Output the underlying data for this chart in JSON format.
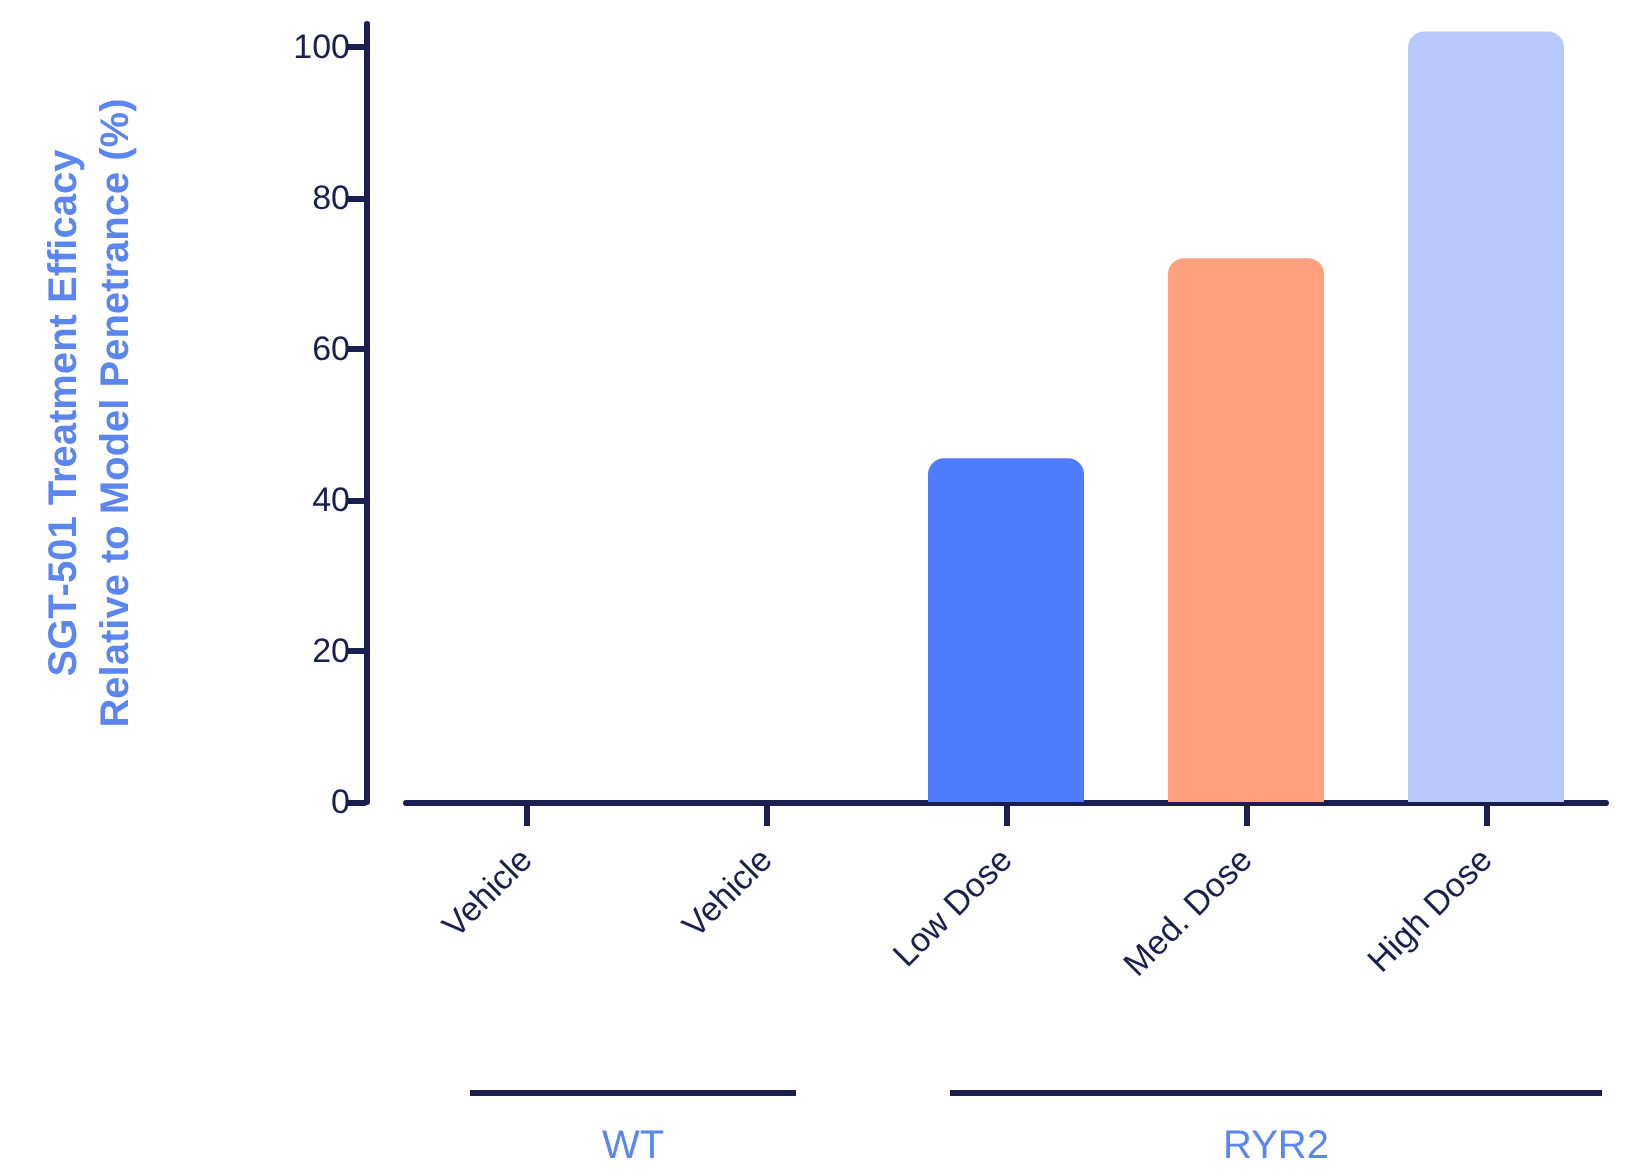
{
  "chart_data": {
    "type": "bar",
    "ylabel": "SGT-501 Treatment Efficacy\nRelative to Model Penetrance (%)",
    "categories": [
      "Vehicle",
      "Vehicle",
      "Low Dose",
      "Med. Dose",
      "High Dose"
    ],
    "values": [
      0,
      0,
      45.5,
      72,
      102
    ],
    "colors": [
      "#4f7bff",
      "#4f7bff",
      "#4f7bff",
      "#ffa07f",
      "#b8c8fb"
    ],
    "ylim": [
      0,
      103
    ],
    "yticks": [
      0,
      20,
      40,
      60,
      80,
      100
    ],
    "grid": false,
    "annotations": [
      "WT",
      "RYR2"
    ]
  }
}
